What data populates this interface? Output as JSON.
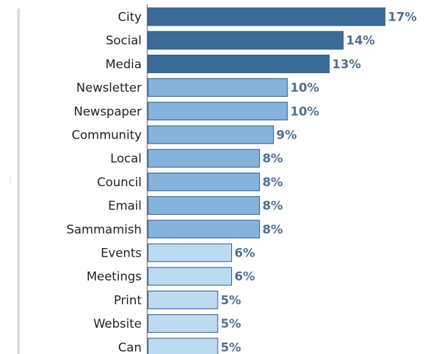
{
  "chart_data": {
    "type": "bar",
    "orientation": "horizontal",
    "categories": [
      "City",
      "Social",
      "Media",
      "Newsletter",
      "Newspaper",
      "Community",
      "Local",
      "Council",
      "Email",
      "Sammamish",
      "Events",
      "Meetings",
      "Print",
      "Website",
      "Can"
    ],
    "values": [
      17,
      14,
      13,
      10,
      10,
      9,
      8,
      8,
      8,
      8,
      6,
      6,
      5,
      5,
      5
    ],
    "value_labels": [
      "17%",
      "14%",
      "13%",
      "10%",
      "10%",
      "9%",
      "8%",
      "8%",
      "8%",
      "8%",
      "6%",
      "6%",
      "5%",
      "5%",
      "5%"
    ],
    "title": "",
    "xlabel": "",
    "ylabel": "",
    "xlim": [
      0,
      17
    ],
    "grid": false,
    "legend": "none",
    "colors": {
      "dark": "#3d6b98",
      "mid": "#86b3dc",
      "light": "#bcdaf0",
      "value_text": "#4f6f95",
      "bar_border": "#2c5a88"
    }
  }
}
